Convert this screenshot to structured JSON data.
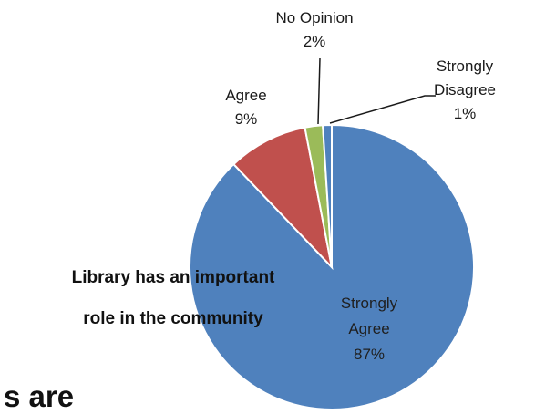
{
  "caption": {
    "line1": "Library has an important",
    "line2": "role in the community"
  },
  "background_fragment": "s are",
  "chart_data": {
    "type": "pie",
    "categories": [
      "Strongly Agree",
      "Agree",
      "No Opinion",
      "Strongly Disagree"
    ],
    "values": [
      87,
      9,
      2,
      1
    ],
    "colors": [
      "#4F81BD",
      "#C0504D",
      "#9BBB59",
      "#4F81BD"
    ],
    "labels": [
      {
        "lines": [
          "Strongly",
          "Agree",
          "87%"
        ]
      },
      {
        "lines": [
          "Agree",
          "9%"
        ]
      },
      {
        "lines": [
          "No Opinion",
          "2%"
        ]
      },
      {
        "lines": [
          "Strongly",
          "Disagree",
          "1%"
        ]
      }
    ]
  }
}
